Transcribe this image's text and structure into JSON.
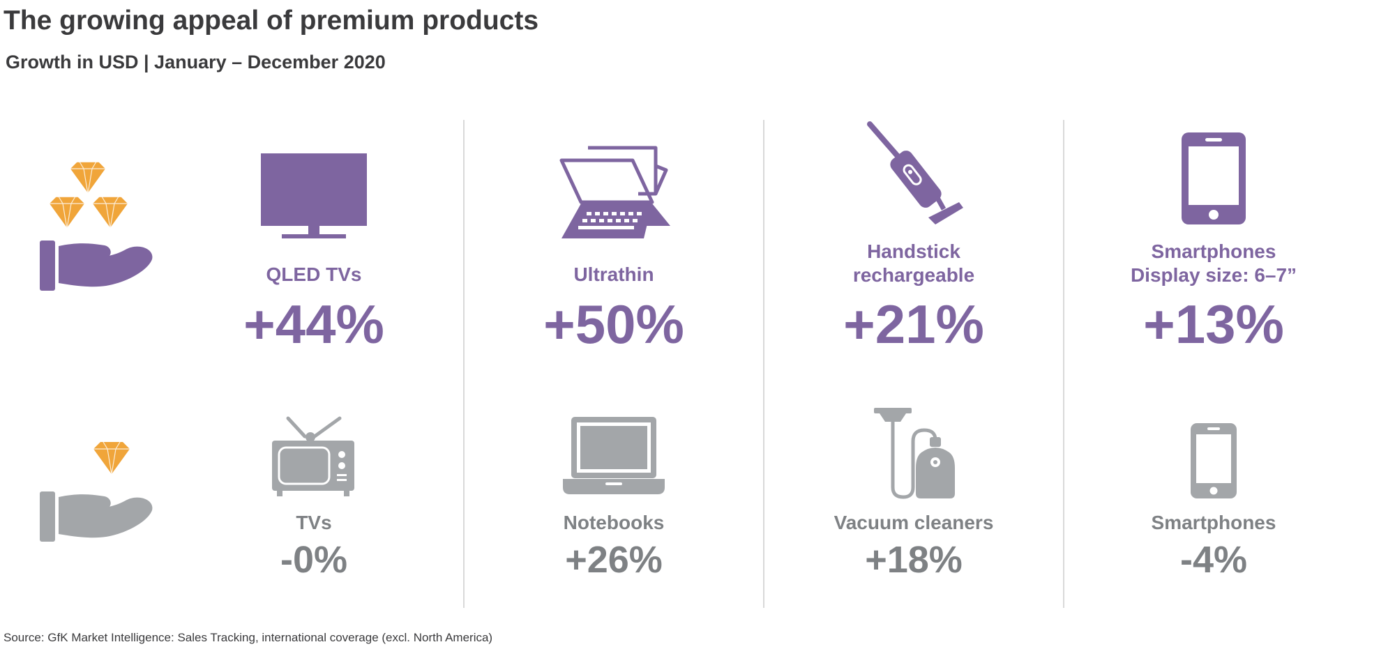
{
  "header": {
    "title": "The growing appeal of premium products",
    "subtitle": "Growth in USD | January – December 2020"
  },
  "row_icons": {
    "premium": "hand-with-three-diamonds-icon",
    "standard": "hand-with-one-diamond-icon"
  },
  "columns": [
    {
      "premium": {
        "label": "QLED TVs",
        "value": "+44%",
        "icon": "flat-tv-icon"
      },
      "standard": {
        "label": "TVs",
        "value": "-0%",
        "icon": "retro-tv-icon"
      }
    },
    {
      "premium": {
        "label": "Ultrathin",
        "value": "+50%",
        "icon": "ultrathin-laptop-icon"
      },
      "standard": {
        "label": "Notebooks",
        "value": "+26%",
        "icon": "notebook-icon"
      }
    },
    {
      "premium": {
        "label": "Handstick rechargeable",
        "label_line1": "Handstick",
        "label_line2": "rechargeable",
        "value": "+21%",
        "icon": "stick-vacuum-icon"
      },
      "standard": {
        "label": "Vacuum cleaners",
        "value": "+18%",
        "icon": "canister-vacuum-icon"
      }
    },
    {
      "premium": {
        "label": "Smartphones Display size: 6–7”",
        "label_line1": "Smartphones",
        "label_line2": "Display size: 6–7”",
        "value": "+13%",
        "icon": "large-smartphone-icon"
      },
      "standard": {
        "label": "Smartphones",
        "value": "-4%",
        "icon": "smartphone-icon"
      }
    }
  ],
  "colors": {
    "premium": "#7e65a0",
    "standard": "#a3a6a9",
    "diamond": "#f0a53a",
    "text_dark": "#3a3a3c"
  },
  "footer": {
    "source": "Source: GfK Market Intelligence: Sales Tracking, international coverage (excl. North America)"
  }
}
